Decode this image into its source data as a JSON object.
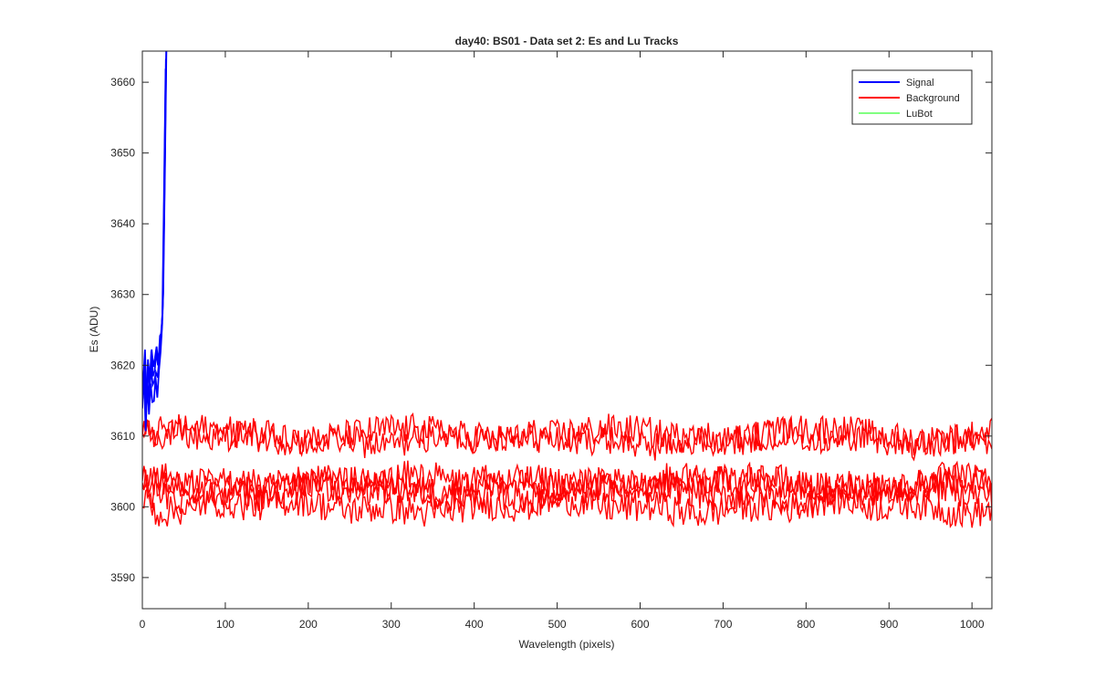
{
  "chart_data": {
    "type": "line",
    "title": "day40: BS01 - Data set 2: Es and Lu Tracks",
    "xlabel": "Wavelength (pixels)",
    "ylabel": "Es (ADU)",
    "xlim": [
      0,
      1024
    ],
    "ylim": [
      3585.6,
      3664.4
    ],
    "xticks": [
      0,
      100,
      200,
      300,
      400,
      500,
      600,
      700,
      800,
      900,
      1000
    ],
    "yticks": [
      3590,
      3600,
      3610,
      3620,
      3630,
      3640,
      3650,
      3660
    ],
    "grid": false,
    "box": true,
    "legend": {
      "position": "top-right",
      "entries": [
        {
          "label": "Signal",
          "color": "#0000ff"
        },
        {
          "label": "Background",
          "color": "#ff0000"
        },
        {
          "label": "LuBot",
          "color": "#00ff00"
        }
      ]
    },
    "series": [
      {
        "name": "Signal",
        "color": "#0000ff",
        "x": [
          0,
          2,
          4,
          6,
          8,
          10,
          12,
          14,
          16,
          18,
          20,
          22,
          24,
          26,
          28
        ],
        "y": [
          3616,
          3621,
          3614,
          3619,
          3615,
          3620,
          3617,
          3618,
          3621,
          3619,
          3622,
          3624,
          3628,
          3645,
          3664
        ]
      },
      {
        "name": "Background",
        "color": "#ff0000",
        "x": [
          0,
          8,
          16,
          30,
          60,
          100,
          150,
          200,
          250,
          300,
          350,
          400,
          450,
          500,
          550,
          600,
          650,
          700,
          750,
          800,
          850,
          900,
          950,
          1000,
          1024
        ],
        "mean_levels": [
          3609.6,
          3603.5,
          3602.0,
          3600.0
        ],
        "noise_amplitude": 2.2,
        "y_upper": [
          3612,
          3613,
          3612,
          3611,
          3610,
          3610,
          3610,
          3610,
          3610,
          3610,
          3610,
          3610,
          3610,
          3610,
          3611,
          3610,
          3610,
          3610,
          3610,
          3609,
          3610,
          3609,
          3610,
          3610,
          3609
        ],
        "y_lower": [
          3600,
          3603,
          3601,
          3600,
          3600,
          3600,
          3600,
          3600,
          3600,
          3600,
          3600,
          3600,
          3600,
          3600,
          3600,
          3600,
          3600,
          3600,
          3600,
          3600,
          3600,
          3600,
          3600,
          3600,
          3599
        ]
      },
      {
        "name": "LuBot",
        "color": "#00ff00",
        "x": [],
        "y": []
      }
    ]
  }
}
